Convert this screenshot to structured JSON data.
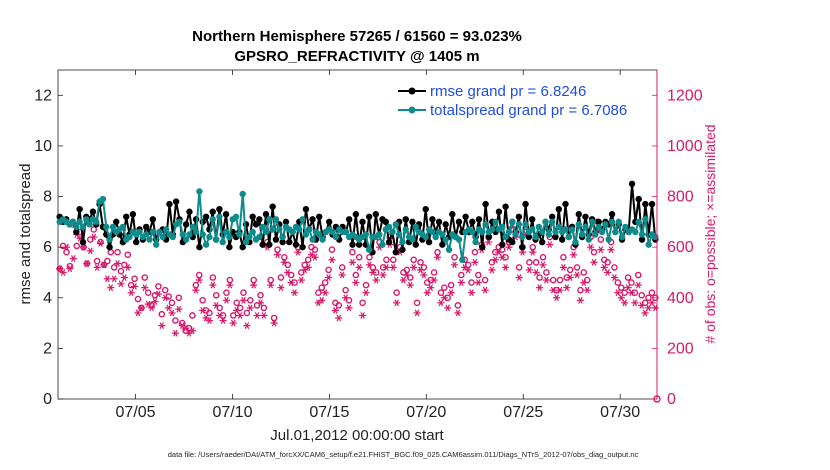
{
  "chart_data": {
    "type": "line",
    "title": "Northern Hemisphere 57265 / 61560 = 93.023%",
    "subtitle": "GPSRO_REFRACTIVITY @ 1405 m",
    "xlabel": "Jul.01,2012 00:00:00 start",
    "ylabel": "rmse and totalspread",
    "y2label": "# of obs: o=possible; ×=assimilated",
    "footer": "data file: /Users/raeder/DAI/ATM_forcXX/CAM6_setup/f.e21.FHIST_BGC.f09_025.CAM6assim.011/Diags_NTrS_2012-07/obs_diag_output.nc",
    "xlim": [
      1,
      31.9
    ],
    "ylim": [
      0,
      13
    ],
    "y2lim": [
      0,
      1300
    ],
    "x_ticks": [
      5,
      10,
      15,
      20,
      25,
      30
    ],
    "x_tick_labels": [
      "07/05",
      "07/10",
      "07/15",
      "07/20",
      "07/25",
      "07/30"
    ],
    "y_ticks": [
      0,
      2,
      4,
      6,
      8,
      10,
      12
    ],
    "y_tick_labels": [
      "0",
      "2",
      "4",
      "6",
      "8",
      "10",
      "12"
    ],
    "y2_ticks": [
      0,
      200,
      400,
      600,
      800,
      1000,
      1200
    ],
    "y2_tick_labels": [
      "0",
      "200",
      "400",
      "600",
      "800",
      "1000",
      "1200"
    ],
    "colors": {
      "rmse": "#000000",
      "spread": "#0e8c8c",
      "obs": "#d6196a",
      "legend_text": "#1f4fd8"
    },
    "series": [
      {
        "name": "rmse",
        "legend": "rmse grand pr = 6.8246",
        "color": "#000000",
        "marker": "dot",
        "values": [
          7.2,
          7.0,
          7.1,
          6.9,
          7.0,
          6.6,
          7.5,
          6.2,
          7.2,
          7.1,
          7.4,
          6.9,
          7.7,
          6.8,
          6.5,
          6.0,
          6.5,
          7.0,
          6.5,
          6.2,
          7.2,
          6.5,
          7.3,
          6.2,
          6.7,
          6.3,
          6.8,
          6.6,
          7.1,
          6.3,
          6.6,
          6.7,
          6.3,
          7.7,
          6.5,
          7.8,
          7.1,
          6.2,
          6.9,
          7.4,
          6.4,
          7.1,
          6.0,
          7.0,
          7.2,
          6.7,
          7.4,
          6.3,
          7.5,
          6.5,
          7.3,
          6.0,
          6.6,
          6.4,
          6.6,
          6.0,
          6.9,
          6.2,
          7.2,
          6.9,
          7.1,
          6.1,
          7.3,
          6.1,
          7.6,
          6.3,
          6.9,
          6.2,
          7.0,
          6.2,
          6.6,
          6.1,
          7.0,
          6.0,
          7.5,
          6.7,
          7.1,
          6.3,
          7.2,
          6.4,
          6.6,
          7.0,
          6.5,
          6.8,
          6.3,
          6.8,
          6.6,
          7.1,
          6.1,
          7.3,
          6.1,
          7.0,
          6.1,
          7.2,
          5.8,
          7.3,
          6.5,
          7.1,
          7.0,
          6.2,
          6.6,
          5.8,
          7.0,
          5.9,
          7.1,
          6.2,
          7.0,
          6.1,
          6.9,
          6.3,
          7.5,
          6.2,
          7.1,
          6.6,
          7.0,
          6.1,
          6.9,
          6.4,
          7.3,
          6.4,
          7.0,
          6.6,
          7.2,
          6.6,
          7.0,
          6.4,
          7.1,
          6.0,
          7.7,
          6.4,
          7.0,
          6.6,
          7.4,
          6.1,
          7.6,
          6.3,
          6.2,
          6.6,
          7.2,
          6.0,
          7.7,
          6.4,
          7.1,
          6.3,
          6.5,
          6.2,
          7.0,
          6.7,
          7.2,
          6.4,
          7.5,
          6.3,
          7.7,
          6.4,
          6.8,
          6.1,
          7.3,
          6.4,
          7.2,
          6.5,
          7.1,
          6.6,
          7.0,
          6.7,
          7.0,
          6.9,
          7.3,
          6.6,
          6.9,
          6.3,
          6.7,
          6.6,
          8.5,
          7.0,
          7.9,
          6.3,
          7.7,
          6.5,
          7.7,
          6.3
        ]
      },
      {
        "name": "totalspread",
        "legend": "totalspread grand pr = 6.7086",
        "color": "#0e8c8c",
        "marker": "dot",
        "values": [
          7.0,
          7.1,
          7.0,
          6.9,
          7.0,
          6.8,
          7.0,
          6.8,
          7.1,
          6.9,
          7.1,
          7.0,
          7.8,
          7.9,
          6.8,
          6.3,
          6.8,
          6.6,
          6.7,
          6.8,
          6.3,
          6.4,
          6.6,
          6.5,
          6.6,
          6.4,
          6.5,
          6.3,
          6.6,
          6.1,
          6.6,
          6.4,
          6.7,
          6.5,
          6.4,
          6.9,
          7.0,
          6.5,
          6.3,
          6.5,
          6.8,
          6.6,
          8.2,
          6.5,
          6.1,
          6.4,
          7.1,
          6.3,
          7.2,
          6.2,
          6.6,
          6.4,
          7.1,
          7.2,
          6.5,
          8.1,
          6.2,
          6.4,
          6.6,
          6.3,
          6.4,
          6.8,
          6.6,
          7.1,
          6.7,
          7.1,
          6.7,
          6.4,
          6.8,
          6.7,
          6.6,
          6.8,
          6.7,
          7.1,
          6.5,
          6.7,
          6.3,
          6.6,
          6.5,
          6.3,
          6.6,
          6.7,
          6.6,
          6.4,
          6.7,
          6.6,
          6.6,
          6.4,
          6.5,
          6.4,
          6.3,
          6.4,
          6.5,
          5.9,
          6.4,
          6.4,
          6.5,
          6.1,
          6.7,
          6.8,
          6.6,
          6.9,
          6.5,
          6.2,
          6.7,
          6.4,
          6.3,
          6.8,
          6.6,
          6.5,
          6.4,
          6.7,
          6.6,
          6.4,
          6.6,
          6.5,
          6.3,
          5.9,
          6.5,
          6.4,
          6.3,
          5.5,
          6.6,
          6.7,
          6.6,
          6.2,
          6.7,
          6.6,
          6.9,
          6.6,
          6.7,
          7.0,
          6.7,
          6.8,
          6.4,
          6.6,
          7.0,
          6.5,
          6.9,
          6.4,
          6.9,
          6.6,
          6.7,
          6.4,
          6.8,
          6.6,
          7.0,
          6.5,
          7.0,
          6.6,
          6.8,
          6.6,
          6.7,
          6.4,
          6.7,
          6.2,
          6.9,
          6.5,
          6.8,
          6.3,
          7.0,
          6.5,
          6.8,
          6.6,
          6.9,
          6.3,
          7.0,
          6.6,
          7.0,
          6.4,
          6.8,
          6.6,
          6.7,
          6.6,
          7.0,
          6.5,
          7.1,
          6.1,
          6.5,
          6.4
        ]
      }
    ],
    "obs_possible": {
      "marker": "circle",
      "values": [
        515,
        605,
        580,
        525,
        690,
        605,
        660,
        600,
        535,
        630,
        670,
        545,
        620,
        530,
        545,
        580,
        520,
        580,
        505,
        530,
        570,
        450,
        475,
        395,
        360,
        480,
        420,
        370,
        410,
        445,
        335,
        430,
        405,
        380,
        310,
        400,
        300,
        270,
        280,
        330,
        450,
        490,
        390,
        350,
        340,
        480,
        410,
        360,
        330,
        420,
        470,
        330,
        380,
        360,
        420,
        340,
        390,
        470,
        370,
        410,
        360,
        620,
        470,
        320,
        590,
        480,
        560,
        530,
        490,
        460,
        600,
        500,
        530,
        550,
        600,
        590,
        420,
        440,
        460,
        510,
        590,
        380,
        370,
        520,
        430,
        390,
        580,
        490,
        560,
        380,
        450,
        560,
        520,
        500,
        620,
        520,
        550,
        640,
        550,
        420,
        600,
        500,
        510,
        480,
        550,
        380,
        540,
        520,
        460,
        470,
        500,
        580,
        420,
        440,
        400,
        450,
        560,
        370,
        490,
        550,
        530,
        460,
        580,
        490,
        610,
        470,
        640,
        540,
        580,
        600,
        590,
        560,
        620,
        700,
        660,
        520,
        600,
        680,
        540,
        600,
        540,
        480,
        560,
        500,
        640,
        470,
        430,
        470,
        560,
        480,
        510,
        600,
        520,
        430,
        500,
        470,
        640,
        580,
        700,
        630,
        550,
        540,
        620,
        520,
        460,
        440,
        420,
        480,
        460,
        420,
        490,
        410,
        380,
        400,
        420,
        400
      ]
    },
    "obs_assimilated": {
      "marker": "asterisk",
      "values": [
        515,
        500,
        600,
        515,
        555,
        650,
        635,
        600,
        535,
        585,
        640,
        520,
        615,
        530,
        475,
        440,
        475,
        535,
        455,
        480,
        520,
        420,
        445,
        340,
        360,
        440,
        375,
        360,
        385,
        415,
        290,
        400,
        360,
        340,
        260,
        355,
        290,
        280,
        260,
        270,
        430,
        470,
        350,
        320,
        310,
        450,
        370,
        330,
        310,
        390,
        450,
        300,
        350,
        330,
        390,
        290,
        360,
        450,
        330,
        380,
        330,
        600,
        450,
        300,
        570,
        440,
        540,
        500,
        460,
        420,
        580,
        470,
        510,
        520,
        570,
        560,
        380,
        390,
        420,
        480,
        550,
        350,
        320,
        490,
        400,
        360,
        540,
        460,
        520,
        330,
        420,
        530,
        500,
        470,
        600,
        490,
        520,
        610,
        520,
        380,
        580,
        470,
        490,
        450,
        520,
        340,
        510,
        490,
        420,
        440,
        470,
        560,
        380,
        400,
        360,
        420,
        530,
        340,
        460,
        520,
        510,
        420,
        540,
        460,
        590,
        430,
        620,
        510,
        550,
        580,
        560,
        520,
        600,
        680,
        640,
        480,
        580,
        650,
        510,
        580,
        500,
        440,
        530,
        470,
        610,
        430,
        400,
        430,
        520,
        440,
        480,
        570,
        490,
        390,
        460,
        430,
        600,
        540,
        670,
        590,
        520,
        500,
        590,
        480,
        420,
        400,
        380,
        440,
        420,
        380,
        450,
        370,
        340,
        360,
        380,
        360
      ]
    }
  }
}
